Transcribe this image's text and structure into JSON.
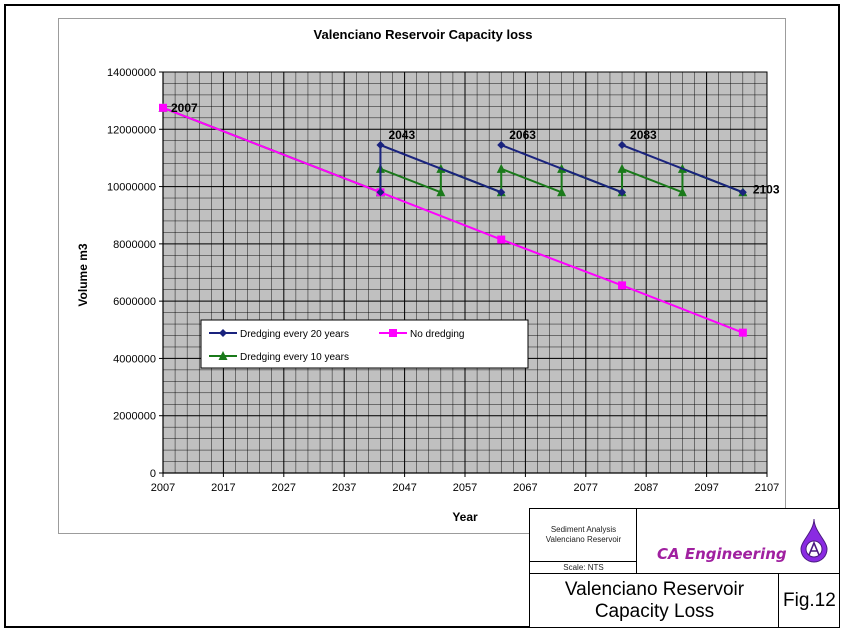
{
  "chart_data": {
    "type": "line",
    "title": "Valenciano Reservoir Capacity loss",
    "xlabel": "Year",
    "ylabel": "Volume m3",
    "xlim": [
      2007,
      2107
    ],
    "ylim": [
      0,
      14000000
    ],
    "x_ticks": [
      2007,
      2017,
      2027,
      2037,
      2047,
      2057,
      2067,
      2077,
      2087,
      2097,
      2107
    ],
    "y_ticks": [
      0,
      2000000,
      4000000,
      6000000,
      8000000,
      10000000,
      12000000,
      14000000
    ],
    "grid": true,
    "legend_position": "lower-left",
    "series": [
      {
        "name": "Dredging every 20 years",
        "color": "#1a237e",
        "marker": "diamond",
        "segments": [
          [
            [
              2043,
              9800000
            ],
            [
              2043,
              11450000
            ],
            [
              2063,
              9800000
            ]
          ],
          [
            [
              2063,
              11450000
            ],
            [
              2083,
              9800000
            ]
          ],
          [
            [
              2083,
              11450000
            ],
            [
              2103,
              9800000
            ]
          ]
        ]
      },
      {
        "name": "No dredging",
        "color": "#ff00ff",
        "marker": "square",
        "points": [
          [
            2007,
            12750000
          ],
          [
            2043,
            9800000
          ],
          [
            2063,
            8150000
          ],
          [
            2083,
            6550000
          ],
          [
            2103,
            4900000
          ]
        ]
      },
      {
        "name": "Dredging every 10 years",
        "color": "#1a7a1a",
        "marker": "triangle",
        "segments": [
          [
            [
              2007,
              12750000
            ],
            [
              2043,
              9800000
            ]
          ],
          [
            [
              2043,
              9800000
            ],
            [
              2043,
              10620000
            ],
            [
              2053,
              9800000
            ],
            [
              2053,
              10620000
            ],
            [
              2063,
              9800000
            ],
            [
              2063,
              10620000
            ],
            [
              2073,
              9800000
            ],
            [
              2073,
              10620000
            ],
            [
              2083,
              9800000
            ],
            [
              2083,
              10620000
            ],
            [
              2093,
              9800000
            ],
            [
              2093,
              10620000
            ],
            [
              2103,
              9800000
            ]
          ]
        ]
      }
    ],
    "annotations": [
      {
        "text": "2007",
        "x": 2007,
        "y": 12750000
      },
      {
        "text": "2043",
        "x": 2043,
        "y": 11450000
      },
      {
        "text": "2063",
        "x": 2063,
        "y": 11450000
      },
      {
        "text": "2083",
        "x": 2083,
        "y": 11450000
      },
      {
        "text": "2103",
        "x": 2103,
        "y": 9800000
      }
    ]
  },
  "title_block": {
    "project_line1": "Sediment Analysis",
    "project_line2": "Valenciano Reservoir",
    "scale": "Scale: NTS",
    "company": "CA Engineering",
    "drawing_title_line1": "Valenciano Reservoir",
    "drawing_title_line2": "Capacity Loss",
    "figure": "Fig.12"
  }
}
